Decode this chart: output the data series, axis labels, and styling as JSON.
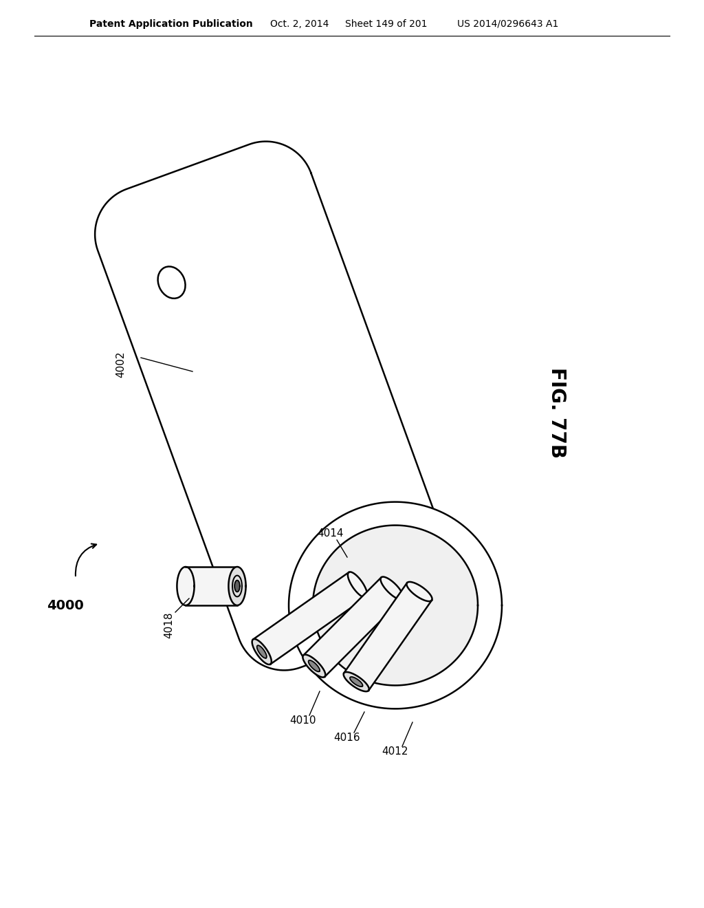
{
  "bg_color": "#ffffff",
  "header_text": "Patent Application Publication",
  "header_date": "Oct. 2, 2014",
  "header_sheet": "Sheet 149 of 201",
  "header_patent": "US 2014/0296643 A1",
  "fig_label": "FIG. 77B",
  "label_4000": "4000",
  "label_4002": "4002",
  "label_4010": "4010",
  "label_4012": "4012",
  "label_4014": "4014",
  "label_4016": "4016",
  "label_4018": "4018",
  "line_color": "#000000",
  "line_width": 1.8,
  "body_fill": "#ffffff",
  "tube_fill": "#f5f5f5"
}
